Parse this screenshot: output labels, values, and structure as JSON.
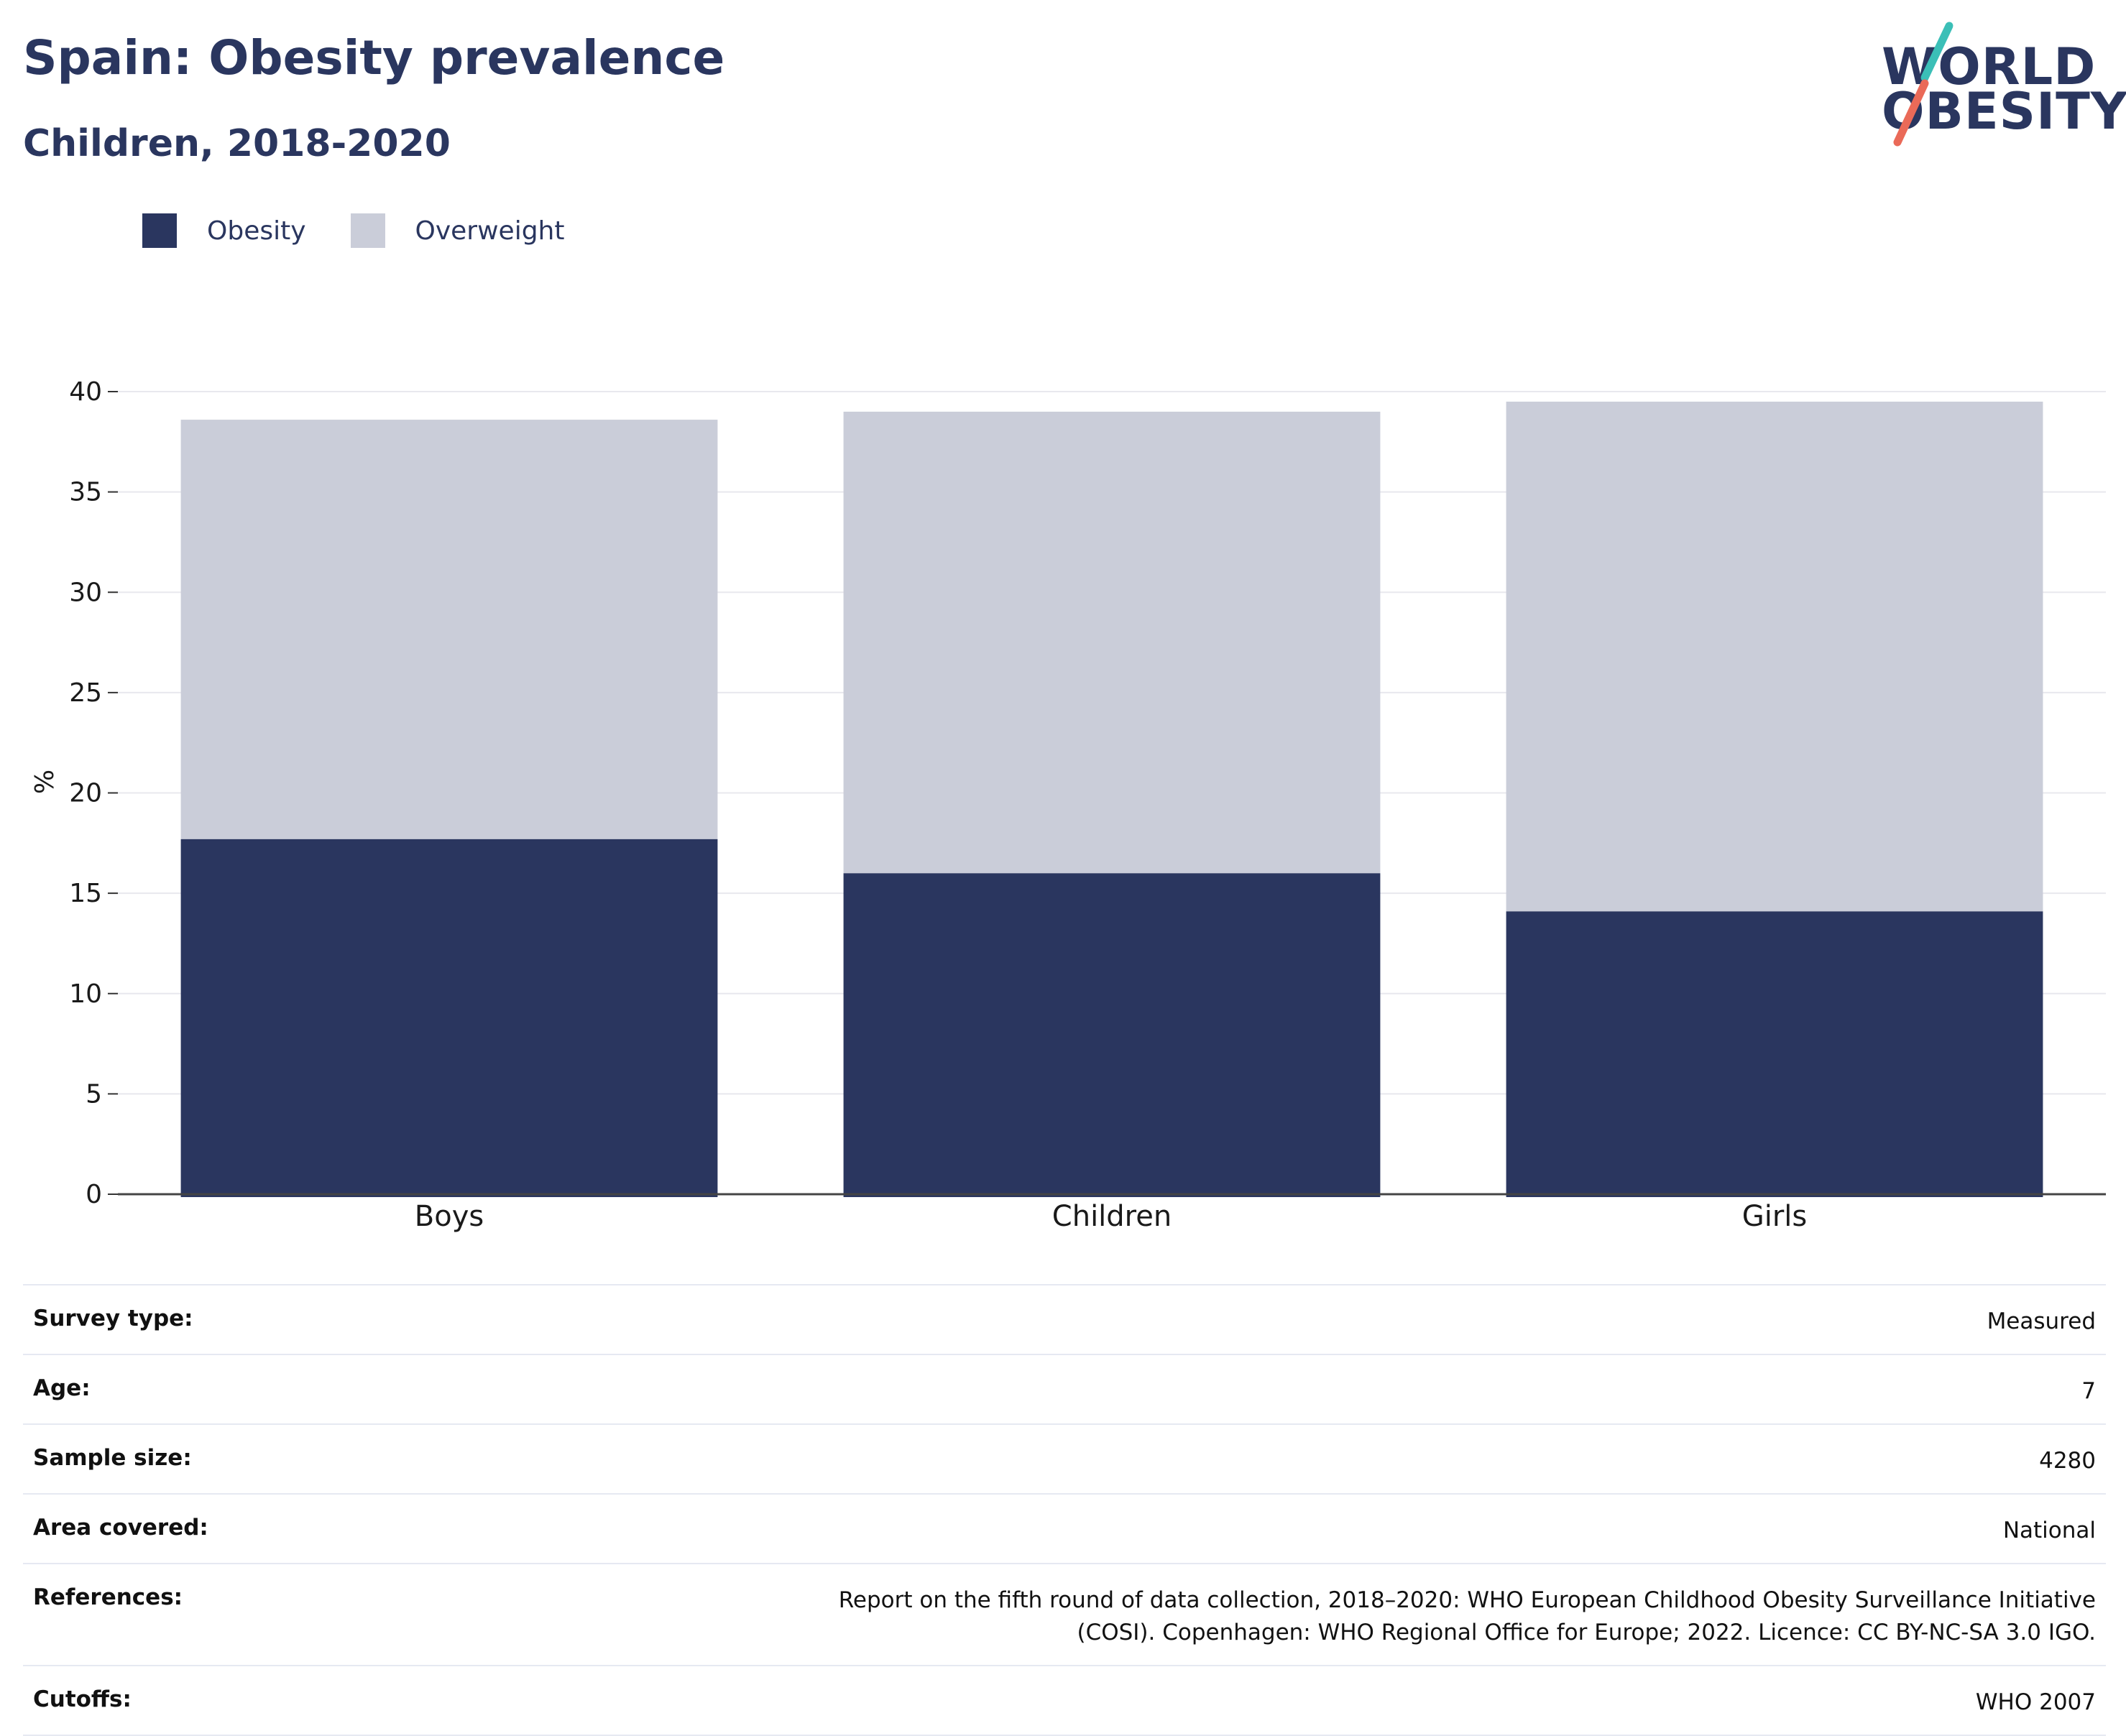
{
  "header": {
    "title": "Spain: Obesity prevalence",
    "subtitle": "Children, 2018-2020"
  },
  "logo": {
    "line1": "WORLD",
    "line2": "OBESITY",
    "colors": {
      "text": "#2a365f",
      "accent_teal": "#3bbfb7",
      "accent_coral": "#ea6a58"
    }
  },
  "legend": {
    "items": [
      {
        "label": "Obesity",
        "color": "#2a365f"
      },
      {
        "label": "Overweight",
        "color": "#cacdd9"
      }
    ]
  },
  "chart_data": {
    "type": "bar",
    "stacked": true,
    "categories": [
      "Boys",
      "Children",
      "Girls"
    ],
    "series": [
      {
        "name": "Obesity",
        "values": [
          17.7,
          16.0,
          14.1
        ],
        "color": "#2a365f"
      },
      {
        "name": "Overweight",
        "values": [
          20.9,
          23.0,
          25.4
        ],
        "color": "#cacdd9"
      }
    ],
    "ylabel": "%",
    "ylim": [
      0,
      40
    ],
    "yticks": [
      0,
      5,
      10,
      15,
      20,
      25,
      30,
      35,
      40
    ],
    "grid": true,
    "legend_position": "top-left"
  },
  "info": {
    "rows": [
      {
        "label": "Survey type:",
        "value": "Measured"
      },
      {
        "label": "Age:",
        "value": "7"
      },
      {
        "label": "Sample size:",
        "value": "4280"
      },
      {
        "label": "Area covered:",
        "value": "National"
      },
      {
        "label": "References:",
        "value": "Report on the fifth round of data collection, 2018–2020: WHO European Childhood Obesity Surveillance Initiative (COSI). Copenhagen: WHO Regional Office for Europe; 2022. Licence: CC BY-NC-SA 3.0 IGO."
      },
      {
        "label": "Cutoffs:",
        "value": "WHO 2007"
      }
    ]
  }
}
